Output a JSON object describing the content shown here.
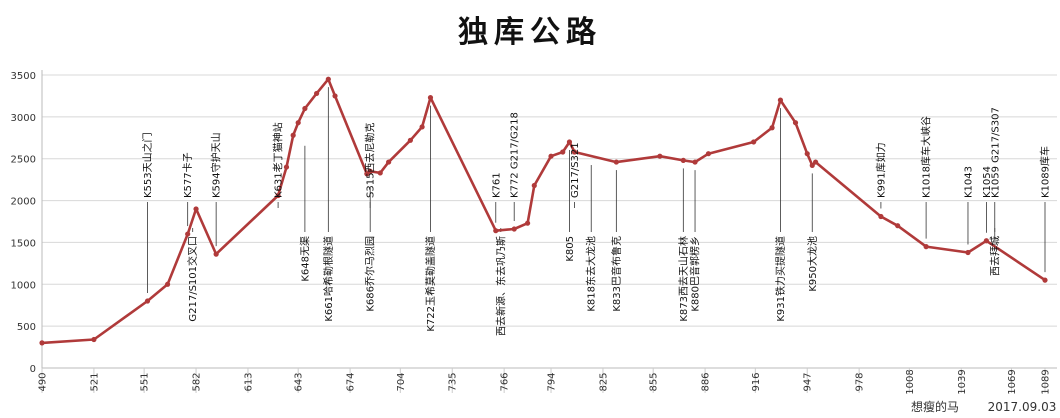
{
  "chart_data": {
    "type": "line",
    "title": "独库公路",
    "xlabel": "",
    "ylabel": "",
    "xlim": [
      490,
      1089
    ],
    "ylim": [
      0,
      3500
    ],
    "x_ticks": [
      490,
      521,
      551,
      582,
      613,
      643,
      674,
      704,
      735,
      766,
      794,
      825,
      855,
      886,
      916,
      947,
      978,
      1008,
      1039,
      1069,
      1089
    ],
    "y_ticks": [
      0,
      500,
      1000,
      1500,
      2000,
      2500,
      3000,
      3500
    ],
    "grid": "horizontal",
    "series": [
      {
        "color": "#b03a3a",
        "x": [
          490,
          521,
          553,
          565,
          577,
          582,
          594,
          631,
          636,
          640,
          643,
          647,
          654,
          661,
          665,
          684,
          686,
          692,
          697,
          710,
          717,
          722,
          761,
          772,
          780,
          784,
          794,
          801,
          805,
          808,
          833,
          859,
          873,
          880,
          888,
          915,
          926,
          931,
          940,
          947,
          950,
          952,
          991,
          1001,
          1018,
          1043,
          1054,
          1089
        ],
        "y": [
          300,
          340,
          800,
          1000,
          1600,
          1900,
          1360,
          2060,
          2400,
          2780,
          2930,
          3100,
          3280,
          3450,
          3250,
          2320,
          2350,
          2330,
          2460,
          2720,
          2880,
          3230,
          1640,
          1660,
          1730,
          2180,
          2530,
          2580,
          2700,
          2580,
          2460,
          2530,
          2480,
          2460,
          2560,
          2700,
          2870,
          3200,
          2930,
          2560,
          2420,
          2460,
          1810,
          1700,
          1450,
          1380,
          1520,
          1050
        ]
      }
    ],
    "annotations": [
      {
        "label": "K553天山之门",
        "x": 553,
        "y": 800,
        "side": "above"
      },
      {
        "label": "K577卡子",
        "x": 577,
        "y": 1600,
        "side": "above"
      },
      {
        "label": "G217/S101交叉口",
        "x": 580,
        "y": 1700,
        "side": "below"
      },
      {
        "label": "K594守护天山",
        "x": 594,
        "y": 1360,
        "side": "above"
      },
      {
        "label": "K631老丁猫神站",
        "x": 631,
        "y": 2060,
        "side": "above"
      },
      {
        "label": "K648无渠",
        "x": 647,
        "y": 2750,
        "side": "below"
      },
      {
        "label": "K661哈希勒根隧道",
        "x": 661,
        "y": 3450,
        "side": "below"
      },
      {
        "label": "S315西去尼勒克",
        "x": 686,
        "y": 2350,
        "side": "above"
      },
      {
        "label": "K686乔尔马烈园",
        "x": 686,
        "y": 2250,
        "side": "below"
      },
      {
        "label": "K722玉希莫勒盖隧道",
        "x": 722,
        "y": 3230,
        "side": "below"
      },
      {
        "label": "K761",
        "x": 761,
        "y": 1640,
        "side": "above"
      },
      {
        "label": "西去新源、东去巩乃斯",
        "x": 764,
        "y": 1640,
        "side": "below"
      },
      {
        "label": "K772  G217/G218",
        "x": 772,
        "y": 1660,
        "side": "above"
      },
      {
        "label": "K805",
        "x": 805,
        "y": 2700,
        "side": "below"
      },
      {
        "label": "G217/S321",
        "x": 808,
        "y": 2580,
        "side": "above"
      },
      {
        "label": "K818东去大龙池",
        "x": 818,
        "y": 2520,
        "side": "below"
      },
      {
        "label": "K833巴音布鲁克",
        "x": 833,
        "y": 2460,
        "side": "below"
      },
      {
        "label": "K873西去天山石林",
        "x": 873,
        "y": 2480,
        "side": "below"
      },
      {
        "label": "K880巴音郭楞乡",
        "x": 880,
        "y": 2460,
        "side": "below"
      },
      {
        "label": "K931铁力买提隧道",
        "x": 931,
        "y": 3200,
        "side": "below"
      },
      {
        "label": "K950大龙池",
        "x": 950,
        "y": 2420,
        "side": "below"
      },
      {
        "label": "K991库如力",
        "x": 991,
        "y": 1810,
        "side": "above"
      },
      {
        "label": "K1018库车大峡谷",
        "x": 1018,
        "y": 1450,
        "side": "above"
      },
      {
        "label": "K1043",
        "x": 1043,
        "y": 1380,
        "side": "above"
      },
      {
        "label": "K1054",
        "x": 1054,
        "y": 1520,
        "side": "above"
      },
      {
        "label": "K1059  G217/S307",
        "x": 1059,
        "y": 1440,
        "side": "above"
      },
      {
        "label": "西去拜城",
        "x": 1059,
        "y": 1440,
        "side": "below"
      },
      {
        "label": "K1089库车",
        "x": 1089,
        "y": 1050,
        "side": "above"
      }
    ]
  },
  "footer": {
    "author": "想瘦的马",
    "date": "2017.09.03"
  }
}
